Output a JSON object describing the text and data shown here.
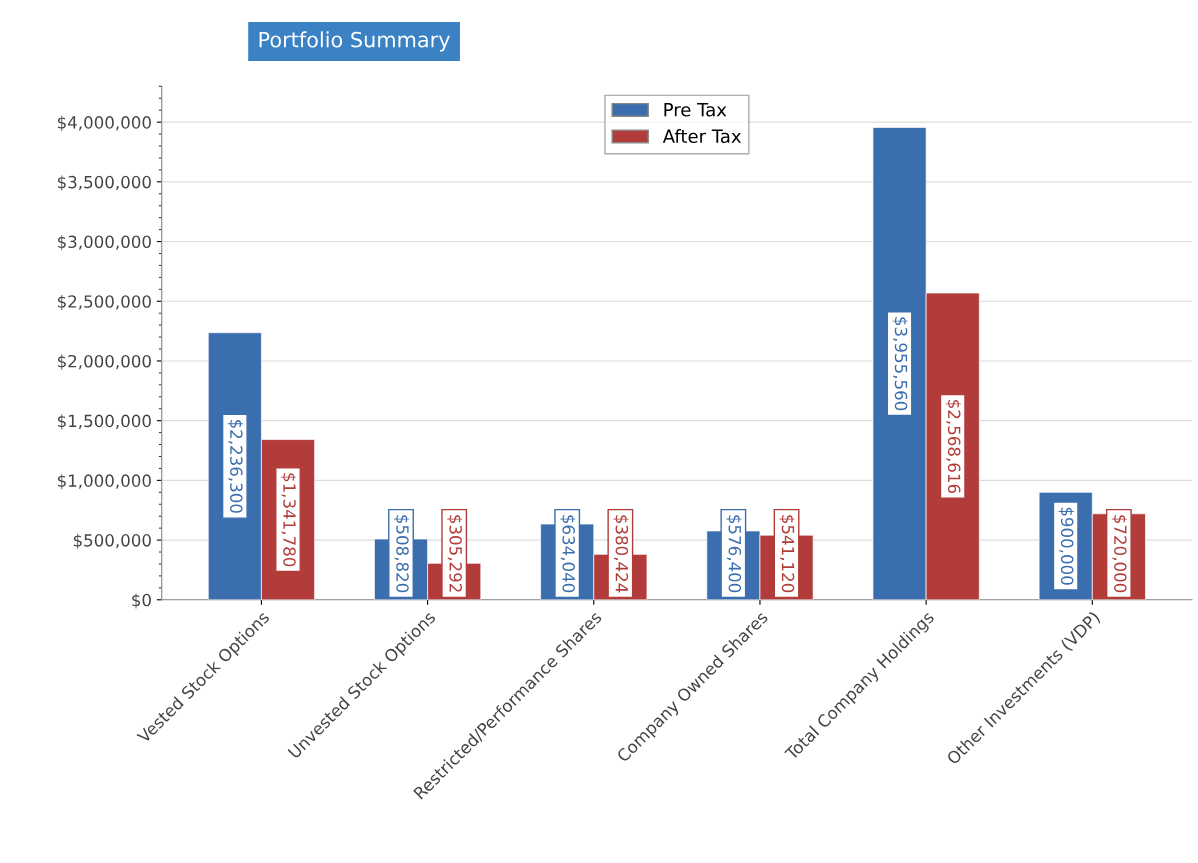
{
  "chart_data": {
    "type": "bar",
    "title": "Portfolio Summary",
    "categories": [
      "Vested Stock Options",
      "Unvested Stock Options",
      "Restricted/Performance Shares",
      "Company Owned Shares",
      "Total Company Holdings",
      "Other Investments (VDP)"
    ],
    "series": [
      {
        "name": "Pre Tax",
        "color": "#3b6eae",
        "values": [
          2236300,
          508820,
          634040,
          576400,
          3955560,
          900000
        ],
        "value_labels": [
          "$2,236,300",
          "$508,820",
          "$634,040",
          "$576,400",
          "$3,955,560",
          "$900,000"
        ]
      },
      {
        "name": "After Tax",
        "color": "#b23c3a",
        "values": [
          1341780,
          305292,
          380424,
          541120,
          2568616,
          720000
        ],
        "value_labels": [
          "$1,341,780",
          "$305,292",
          "$380,424",
          "$541,120",
          "$2,568,616",
          "$720,000"
        ]
      }
    ],
    "ylim": [
      0,
      4300000
    ],
    "yticks": [
      {
        "value": 0,
        "label": "$0"
      },
      {
        "value": 500000,
        "label": "$500,000"
      },
      {
        "value": 1000000,
        "label": "$1,000,000"
      },
      {
        "value": 1500000,
        "label": "$1,500,000"
      },
      {
        "value": 2000000,
        "label": "$2,000,000"
      },
      {
        "value": 2500000,
        "label": "$2,500,000"
      },
      {
        "value": 3000000,
        "label": "$3,000,000"
      },
      {
        "value": 3500000,
        "label": "$3,500,000"
      },
      {
        "value": 4000000,
        "label": "$4,000,000"
      }
    ],
    "grid": "y",
    "legend": "top"
  }
}
